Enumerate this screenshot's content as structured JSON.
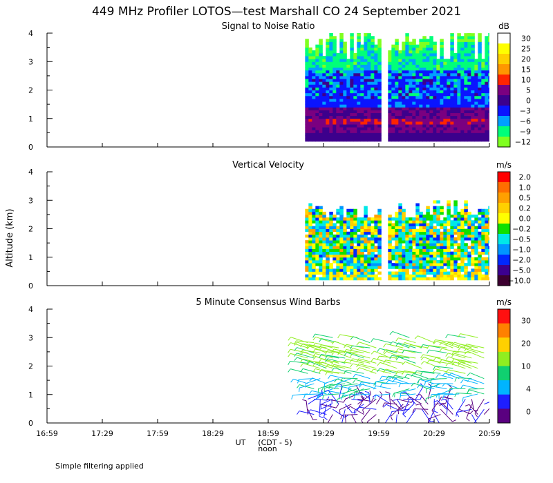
{
  "title": "449 MHz Profiler LOTOS—test Marshall CO 24 September 2021",
  "ylabel": "Altitude (km)",
  "xlabel": "UT",
  "xlabel_note": "(CDT - 5)",
  "noon_label": "noon",
  "footnote": "Simple filtering applied",
  "x_ticks": [
    "16:59",
    "17:29",
    "17:59",
    "18:29",
    "18:59",
    "19:29",
    "19:59",
    "20:29",
    "20:59"
  ],
  "chart_data": [
    {
      "type": "heatmap",
      "title": "Signal to Noise Ratio",
      "unit": "dB",
      "ylim": [
        0,
        4
      ],
      "y_ticks": [
        "0",
        "1",
        "2",
        "3",
        "4"
      ],
      "xlim": [
        "16:59",
        "20:59"
      ],
      "data_start": "19:19",
      "gap": [
        "19:59",
        "20:04"
      ],
      "colorbar": {
        "labels": [
          "30",
          "25",
          "20",
          "15",
          "10",
          "5",
          "0",
          "−3",
          "−6",
          "−9",
          "−12"
        ],
        "colors": [
          "#ffffff",
          "#ffff00",
          "#ffd000",
          "#ff9600",
          "#ff2400",
          "#7a0080",
          "#3c008c",
          "#0a14ff",
          "#00a0ff",
          "#00ff7a",
          "#80ff20"
        ]
      }
    },
    {
      "type": "heatmap",
      "title": "Vertical Velocity",
      "unit": "m/s",
      "ylim": [
        0,
        4
      ],
      "y_ticks": [
        "0",
        "1",
        "2",
        "3",
        "4"
      ],
      "xlim": [
        "16:59",
        "20:59"
      ],
      "data_start": "19:19",
      "gap": [
        "19:59",
        "20:04"
      ],
      "colorbar": {
        "labels": [
          "2.0",
          "1.0",
          "0.5",
          "0.2",
          "0.0",
          "−0.2",
          "−0.5",
          "−1.0",
          "−2.0",
          "−5.0",
          "−10.0"
        ],
        "colors": [
          "#ff0000",
          "#ff6e00",
          "#ffa000",
          "#ffd000",
          "#ffff00",
          "#10e000",
          "#00e8e8",
          "#0096ff",
          "#0028ff",
          "#3c0090",
          "#3c0030"
        ]
      }
    },
    {
      "type": "scatter",
      "title": "5 Minute Consensus Wind Barbs",
      "unit": "m/s",
      "ylim": [
        0,
        4
      ],
      "y_ticks": [
        "0",
        "1",
        "2",
        "3",
        "4"
      ],
      "xlim": [
        "16:59",
        "20:59"
      ],
      "data_start": "19:19",
      "gap": [
        "19:59",
        "20:04"
      ],
      "colorbar": {
        "labels": [
          "30",
          "20",
          "10",
          "4",
          "0"
        ],
        "colors": [
          "#ff1010",
          "#ff8000",
          "#ffd000",
          "#90ee20",
          "#10d070",
          "#00b4ff",
          "#1e1eff",
          "#5a0080"
        ]
      }
    }
  ]
}
